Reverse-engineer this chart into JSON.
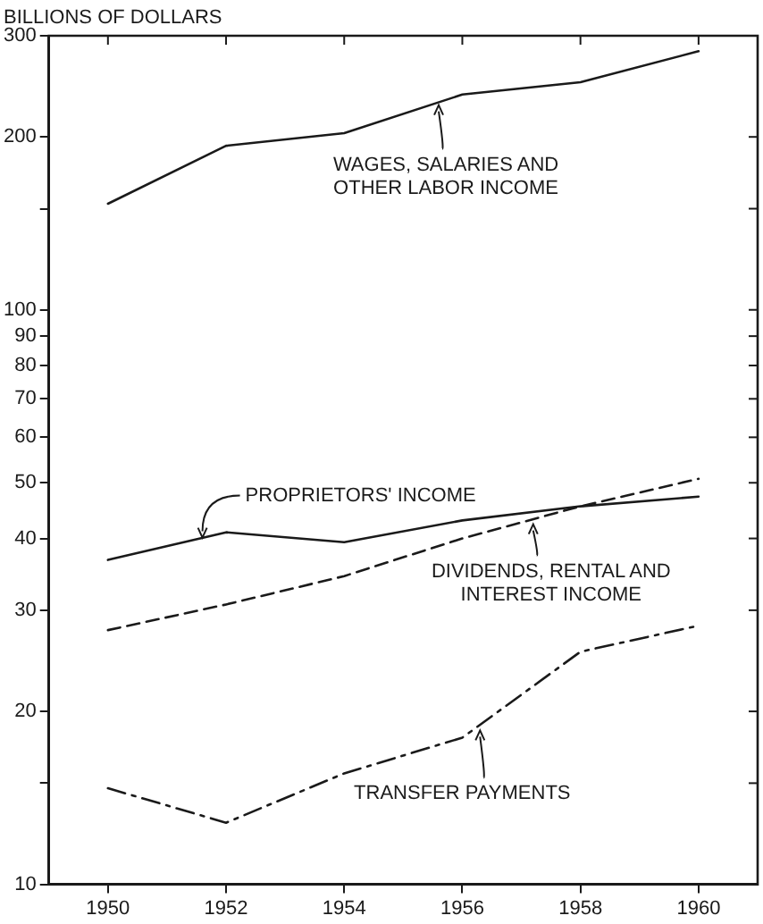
{
  "chart_data": {
    "type": "line",
    "ylabel": "BILLIONS OF DOLLARS",
    "x": [
      1950,
      1952,
      1954,
      1956,
      1958,
      1960
    ],
    "series": [
      {
        "color": "#1a1a1a",
        "line_style": "solid",
        "values": [
          153,
          193,
          203,
          237,
          249,
          282
        ]
      },
      {
        "color": "#1a1a1a",
        "line_style": "solid",
        "values": [
          36.7,
          41,
          39.4,
          43,
          45.5,
          47.3
        ]
      },
      {
        "color": "#1a1a1a",
        "line_style": "dashed",
        "values": [
          27.7,
          30.7,
          34.4,
          40,
          45.5,
          50.8
        ]
      },
      {
        "color": "#1a1a1a",
        "line_style": "dashdot",
        "values": [
          14.7,
          12.8,
          15.6,
          18,
          25.4,
          28.2
        ]
      }
    ],
    "annotations": [
      {
        "text": "WAGES, SALARIES AND OTHER LABOR INCOME",
        "x": 1955.6,
        "y": 228
      },
      {
        "text": "PROPRIETORS' INCOME",
        "x": 1951.6,
        "y": 40
      },
      {
        "text": "DIVIDENDS, RENTAL AND INTEREST INCOME",
        "x": 1957.2,
        "y": 42.5
      },
      {
        "text": "TRANSFER PAYMENTS",
        "x": 1956.3,
        "y": 18.6
      }
    ],
    "log": true,
    "xlim": [
      1949,
      1961
    ],
    "xticks": [
      1950,
      1952,
      1954,
      1956,
      1958,
      1960
    ],
    "ylim": [
      10,
      300
    ],
    "yticks": [
      10,
      {
        "value": 15,
        "label": null
      },
      20,
      30,
      40,
      50,
      60,
      70,
      80,
      90,
      100,
      {
        "value": 150,
        "label": null
      },
      200,
      300
    ],
    "grid": false,
    "legend": false,
    "marker": "none"
  }
}
